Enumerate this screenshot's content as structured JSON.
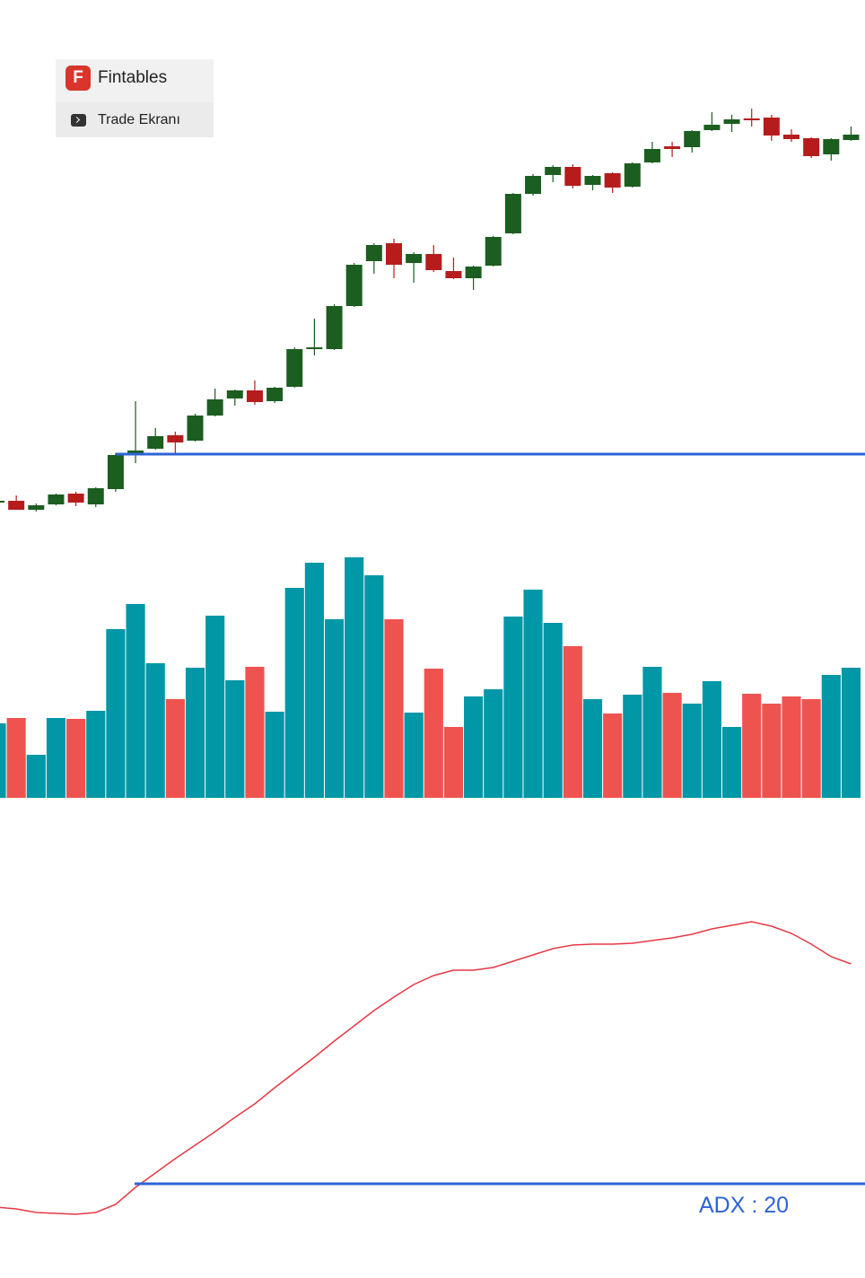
{
  "header": {
    "brand_icon": "F",
    "brand": "Fintables",
    "menu_item": "Trade Ekranı"
  },
  "chart_data": [
    {
      "type": "candlestick",
      "categories": [
        null,
        null,
        null,
        null,
        null,
        null,
        null,
        null,
        null,
        null,
        null,
        null,
        null,
        null,
        null,
        null,
        null,
        null,
        null,
        null,
        null,
        null,
        null,
        null,
        null,
        null,
        null,
        null,
        null,
        null,
        null,
        null,
        null,
        null,
        null,
        null,
        null,
        null,
        null,
        null,
        null,
        null,
        null,
        null
      ],
      "open": [
        60,
        62,
        52,
        58,
        70,
        58,
        75,
        113,
        120,
        135,
        129,
        157,
        176,
        185,
        173,
        189,
        231,
        231,
        279,
        329,
        349,
        327,
        337,
        318,
        310,
        324,
        360,
        404,
        425,
        434,
        414,
        427,
        412,
        439,
        457,
        456,
        475,
        482,
        488,
        489,
        470,
        466,
        448,
        464
      ],
      "high": [
        64,
        68,
        59,
        70,
        72,
        77,
        115,
        173,
        143,
        139,
        159,
        187,
        186,
        196,
        189,
        233,
        265,
        281,
        327,
        349,
        354,
        339,
        347,
        333,
        324,
        357,
        405,
        426,
        436,
        437,
        425,
        428,
        439,
        462,
        462,
        475,
        495,
        492,
        499,
        492,
        476,
        467,
        466,
        479
      ],
      "low": [
        59,
        52,
        50,
        57,
        56,
        55,
        72,
        104,
        119,
        115,
        128,
        156,
        168,
        169,
        171,
        188,
        224,
        230,
        278,
        315,
        310,
        305,
        317,
        309,
        297,
        323,
        359,
        402,
        417,
        410,
        408,
        405,
        411,
        438,
        445,
        450,
        474,
        473,
        479,
        463,
        462,
        444,
        441,
        463
      ],
      "close": [
        62,
        52,
        57,
        69,
        60,
        76,
        113,
        118,
        134,
        127,
        157,
        175,
        185,
        172,
        188,
        231,
        233,
        279,
        325,
        347,
        325,
        337,
        319,
        310,
        323,
        356,
        404,
        424,
        434,
        413,
        424,
        411,
        438,
        454,
        454,
        474,
        481,
        487,
        486,
        469,
        465,
        446,
        465,
        470
      ],
      "up_color": "#1b5e20",
      "down_color": "#b71c1c",
      "level": 114,
      "level_color": "#2e63d6",
      "ylim": [
        0,
        620
      ]
    },
    {
      "type": "bar",
      "categories": [
        null,
        null,
        null,
        null,
        null,
        null,
        null,
        null,
        null,
        null,
        null,
        null,
        null,
        null,
        null,
        null,
        null,
        null,
        null,
        null,
        null,
        null,
        null,
        null,
        null,
        null,
        null,
        null,
        null,
        null,
        null,
        null,
        null,
        null,
        null,
        null,
        null,
        null,
        null,
        null,
        null,
        null,
        null,
        null
      ],
      "values": [
        83,
        89,
        48,
        89,
        88,
        97,
        188,
        216,
        150,
        110,
        145,
        203,
        131,
        146,
        96,
        234,
        262,
        199,
        268,
        248,
        199,
        95,
        144,
        79,
        113,
        121,
        202,
        232,
        195,
        169,
        110,
        94,
        115,
        146,
        117,
        105,
        130,
        79,
        116,
        105,
        113,
        110,
        137,
        145
      ],
      "up_color": "#0097a7",
      "down_color": "#ef5350",
      "ylim": [
        0,
        300
      ]
    },
    {
      "type": "line",
      "categories": [
        null,
        null,
        null,
        null,
        null,
        null,
        null,
        null,
        null,
        null,
        null,
        null,
        null,
        null,
        null,
        null,
        null,
        null,
        null,
        null,
        null,
        null,
        null,
        null,
        null,
        null,
        null,
        null,
        null,
        null,
        null,
        null,
        null,
        null,
        null,
        null,
        null,
        null,
        null,
        null,
        null,
        null,
        null,
        null
      ],
      "values": [
        17.4,
        17.2,
        16.8,
        16.7,
        16.6,
        16.8,
        17.7,
        19.6,
        21.2,
        22.8,
        24.3,
        25.8,
        27.4,
        28.9,
        30.7,
        32.4,
        34.1,
        35.9,
        37.6,
        39.3,
        40.8,
        42.2,
        43.2,
        43.8,
        43.8,
        44.1,
        44.8,
        45.5,
        46.2,
        46.6,
        46.7,
        46.7,
        46.8,
        47.1,
        47.4,
        47.8,
        48.4,
        48.8,
        49.2,
        48.7,
        47.9,
        46.7,
        45.3,
        44.5
      ],
      "color": "#e53945",
      "threshold": 20,
      "threshold_label": "ADX : 20",
      "threshold_color": "#2e63d6",
      "ylim": [
        10,
        60
      ]
    }
  ]
}
